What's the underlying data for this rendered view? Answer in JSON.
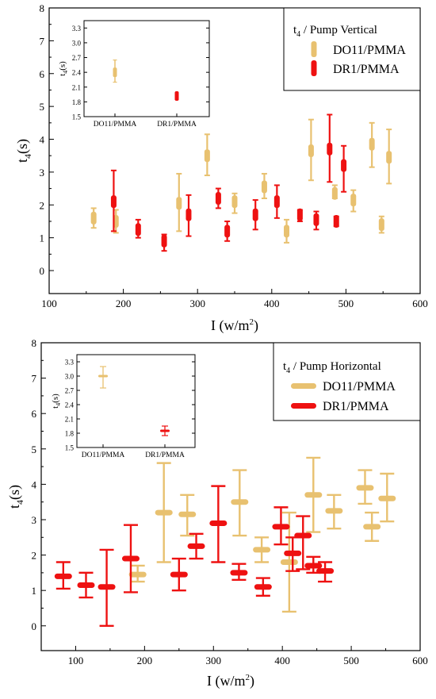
{
  "colors": {
    "do11": "#e8c170",
    "dr1": "#ee1111",
    "axis": "#000000"
  },
  "chart_data": [
    {
      "type": "scatter",
      "title": "",
      "xlabel": "I (w/m",
      "xlabel_sup": "2",
      "xlabel_tail": ")",
      "ylabel": "t",
      "ylabel_sub": "4",
      "ylabel_tail": "(s)",
      "xlim": [
        100,
        600
      ],
      "ylim": [
        -0.7,
        8
      ],
      "xticks": [
        100,
        200,
        300,
        400,
        500,
        600
      ],
      "yticks": [
        0,
        1,
        2,
        3,
        4,
        5,
        6,
        7,
        8
      ],
      "legend_title": "t",
      "legend_title_sub": "4",
      "legend_title_tail": " / Pump Vertical",
      "legend_position": "top-right",
      "marker": "vertical-bar",
      "series": [
        {
          "name": "DO11/PMMA",
          "color": "#e8c170",
          "x": [
            160,
            190,
            275,
            313,
            350,
            390,
            420,
            453,
            485,
            510,
            535,
            548,
            558
          ],
          "y": [
            1.6,
            1.5,
            2.05,
            3.5,
            2.1,
            2.55,
            1.2,
            3.65,
            2.35,
            2.15,
            3.85,
            1.4,
            3.45
          ],
          "err_low": [
            1.3,
            1.15,
            1.2,
            2.9,
            1.75,
            2.2,
            0.85,
            2.75,
            2.2,
            1.8,
            3.15,
            1.15,
            2.65
          ],
          "err_high": [
            1.9,
            1.85,
            2.95,
            4.15,
            2.35,
            2.95,
            1.55,
            4.6,
            2.6,
            2.45,
            4.5,
            1.65,
            4.3
          ]
        },
        {
          "name": "DR1/PMMA",
          "color": "#ee1111",
          "x": [
            187,
            220,
            255,
            288,
            328,
            340,
            378,
            407,
            438,
            460,
            478,
            487,
            497
          ],
          "y": [
            2.1,
            1.25,
            0.9,
            1.7,
            2.2,
            1.2,
            1.7,
            2.1,
            1.7,
            1.55,
            3.7,
            1.5,
            3.2
          ],
          "err_low": [
            1.2,
            1.0,
            0.6,
            1.05,
            1.9,
            0.9,
            1.25,
            1.6,
            1.5,
            1.25,
            2.7,
            1.35,
            2.4
          ],
          "err_high": [
            3.05,
            1.55,
            1.1,
            2.3,
            2.5,
            1.5,
            2.15,
            2.6,
            1.85,
            1.8,
            4.75,
            1.65,
            3.8
          ]
        }
      ],
      "inset": {
        "ylabel": "t",
        "ylabel_sub": "4",
        "ylabel_tail": "(s)",
        "ylim": [
          1.5,
          3.45
        ],
        "yticks": [
          "1.5",
          "1.8",
          "2.1",
          "2.4",
          "2.7",
          "3.0",
          "3.3"
        ],
        "yticks_values": [
          1.5,
          1.8,
          2.1,
          2.4,
          2.7,
          3.0,
          3.3
        ],
        "categories": [
          "DO11/PMMA",
          "DR1/PMMA"
        ],
        "values": [
          2.4,
          1.92
        ],
        "err_low": [
          2.2,
          1.85
        ],
        "err_high": [
          2.65,
          1.98
        ]
      }
    },
    {
      "type": "scatter",
      "title": "",
      "xlabel": "I (w/m",
      "xlabel_sup": "2",
      "xlabel_tail": ")",
      "ylabel": "t",
      "ylabel_sub": "4",
      "ylabel_tail": "(s)",
      "xlim": [
        50,
        600
      ],
      "ylim": [
        -0.7,
        8
      ],
      "xticks": [
        100,
        200,
        300,
        400,
        500,
        600
      ],
      "yticks": [
        0,
        1,
        2,
        3,
        4,
        5,
        6,
        7,
        8
      ],
      "legend_title": "t",
      "legend_title_sub": "4",
      "legend_title_tail": " / Pump Horizontal",
      "legend_position": "top-right",
      "marker": "horizontal-bar",
      "series": [
        {
          "name": "DO11/PMMA",
          "color": "#e8c170",
          "x": [
            190,
            228,
            262,
            338,
            370,
            410,
            445,
            475,
            520,
            530,
            552
          ],
          "y": [
            1.45,
            3.2,
            3.15,
            3.5,
            2.15,
            1.8,
            3.7,
            3.25,
            3.9,
            2.8,
            3.6
          ],
          "err_low": [
            1.25,
            1.8,
            2.55,
            2.55,
            1.8,
            0.4,
            2.65,
            2.75,
            3.45,
            2.4,
            2.95
          ],
          "err_high": [
            1.7,
            4.6,
            3.7,
            4.4,
            2.5,
            3.2,
            4.75,
            3.7,
            4.4,
            3.2,
            4.3
          ]
        },
        {
          "name": "DR1/PMMA",
          "color": "#ee1111",
          "x": [
            82,
            115,
            145,
            180,
            250,
            275,
            307,
            337,
            372,
            398,
            415,
            430,
            445,
            462
          ],
          "y": [
            1.4,
            1.15,
            1.1,
            1.9,
            1.45,
            2.25,
            2.9,
            1.5,
            1.1,
            2.8,
            2.05,
            2.55,
            1.7,
            1.55
          ],
          "err_low": [
            1.05,
            0.8,
            0.0,
            0.95,
            1.0,
            1.9,
            1.8,
            1.3,
            0.85,
            2.3,
            1.55,
            1.6,
            1.5,
            1.25
          ],
          "err_high": [
            1.8,
            1.5,
            2.15,
            2.85,
            1.9,
            2.6,
            3.95,
            1.75,
            1.35,
            3.35,
            2.5,
            3.1,
            1.95,
            1.8
          ]
        }
      ],
      "inset": {
        "ylabel": "t",
        "ylabel_sub": "4",
        "ylabel_tail": "(s)",
        "ylim": [
          1.5,
          3.45
        ],
        "yticks": [
          "1.5",
          "1.8",
          "2.1",
          "2.4",
          "2.7",
          "3.0",
          "3.3"
        ],
        "yticks_values": [
          1.5,
          1.8,
          2.1,
          2.4,
          2.7,
          3.0,
          3.3
        ],
        "categories": [
          "DO11/PMMA",
          "DR1/PMMA"
        ],
        "values": [
          3.0,
          1.85
        ],
        "err_low": [
          2.75,
          1.75
        ],
        "err_high": [
          3.2,
          1.95
        ]
      }
    }
  ]
}
